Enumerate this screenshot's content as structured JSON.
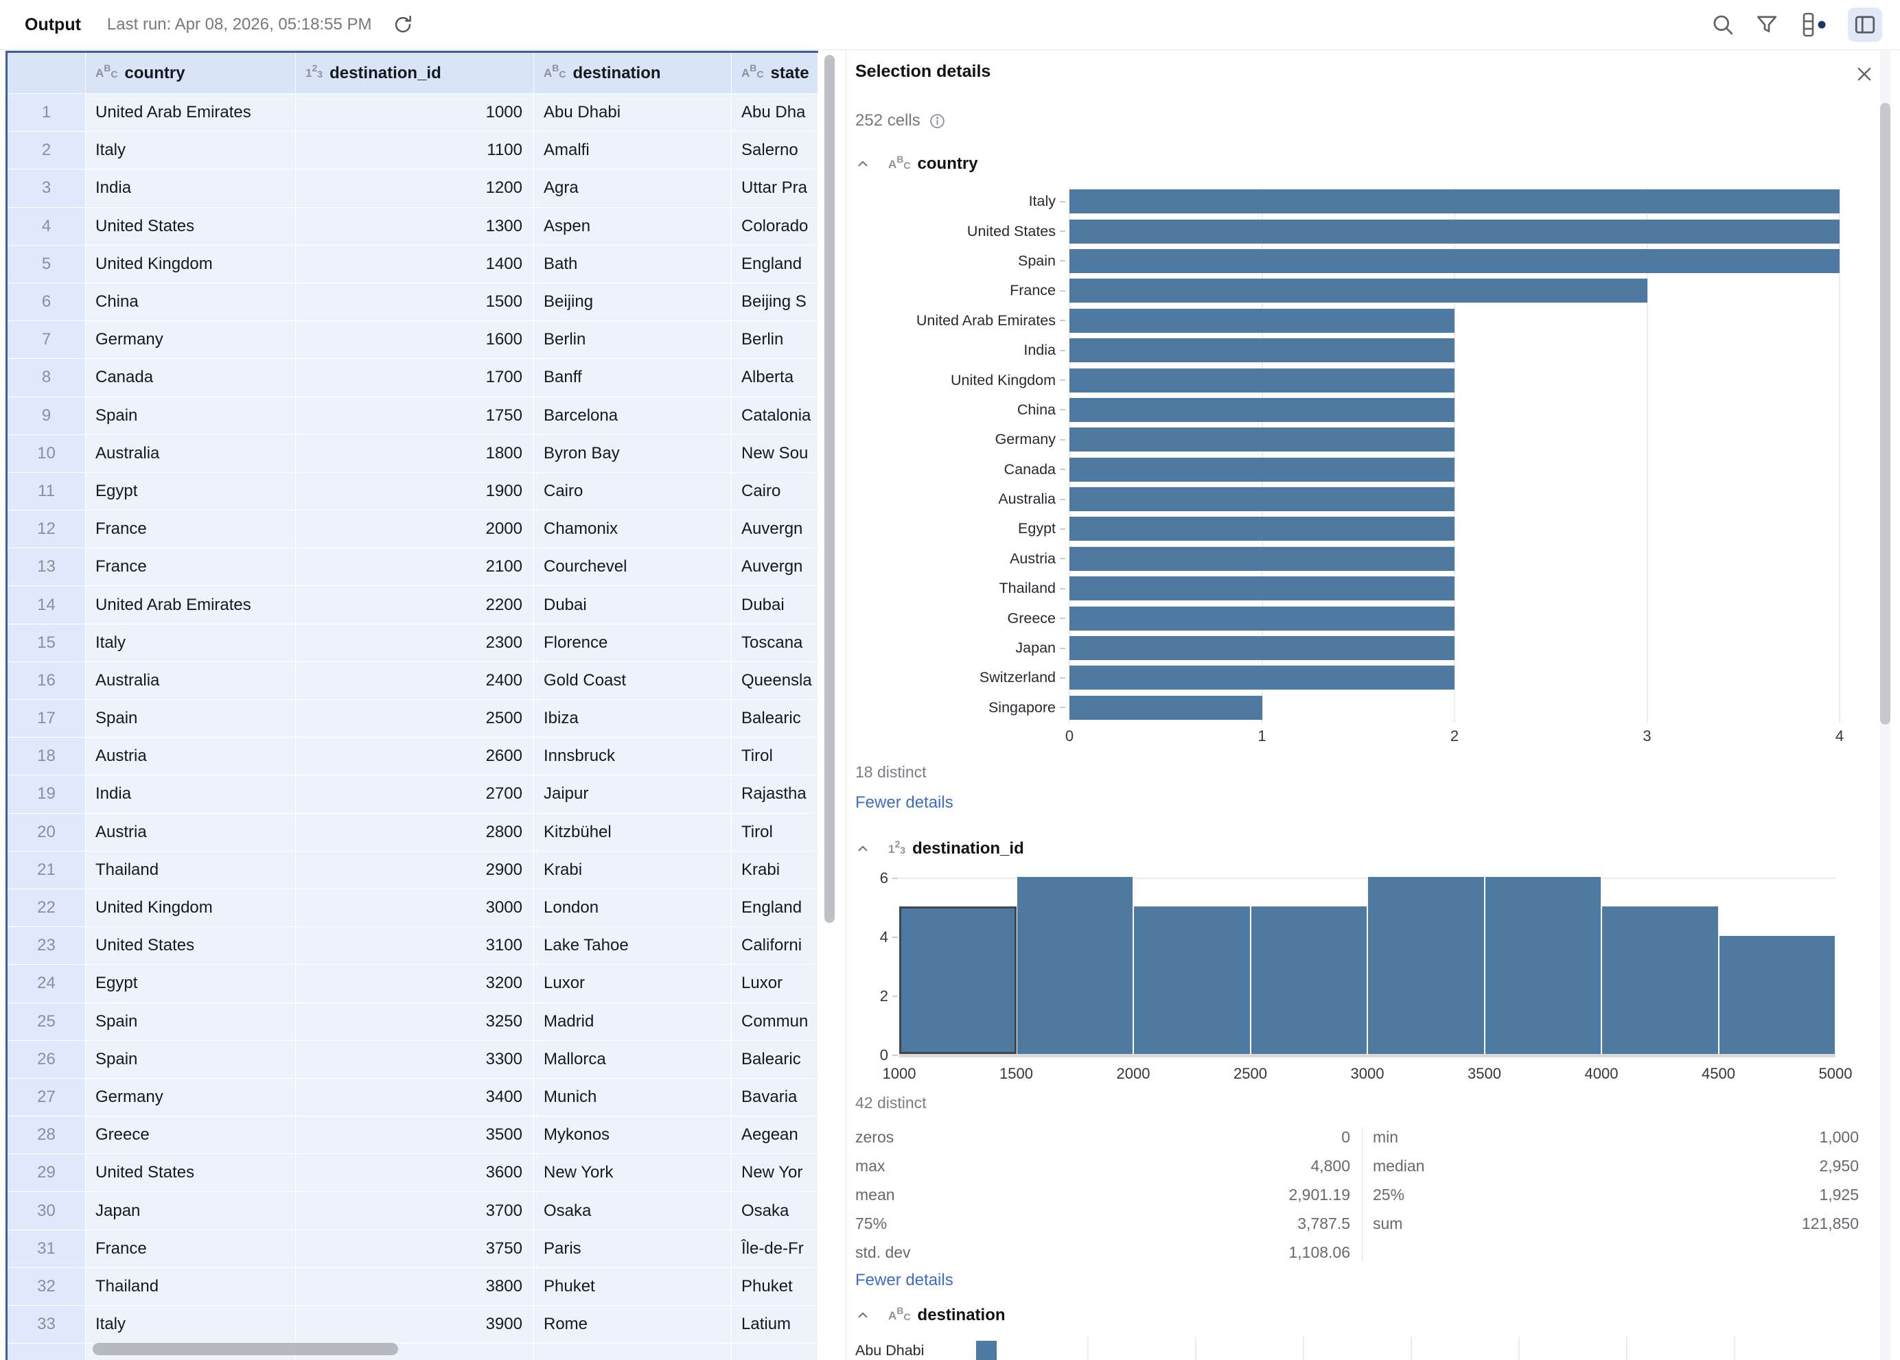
{
  "topbar": {
    "title": "Output",
    "last_run": "Last run: Apr 08, 2026, 05:18:55 PM"
  },
  "panel": {
    "title": "Selection details",
    "cells_summary": "252 cells",
    "fewer_details": "Fewer details"
  },
  "table": {
    "columns": [
      {
        "label": "country",
        "type": "text"
      },
      {
        "label": "destination_id",
        "type": "number"
      },
      {
        "label": "destination",
        "type": "text"
      },
      {
        "label": "state",
        "type": "text"
      }
    ],
    "rows": [
      {
        "n": "1",
        "country": "United Arab Emirates",
        "destination_id": "1000",
        "destination": "Abu Dhabi",
        "state": "Abu Dha"
      },
      {
        "n": "2",
        "country": "Italy",
        "destination_id": "1100",
        "destination": "Amalfi",
        "state": "Salerno"
      },
      {
        "n": "3",
        "country": "India",
        "destination_id": "1200",
        "destination": "Agra",
        "state": "Uttar Pra"
      },
      {
        "n": "4",
        "country": "United States",
        "destination_id": "1300",
        "destination": "Aspen",
        "state": "Colorado"
      },
      {
        "n": "5",
        "country": "United Kingdom",
        "destination_id": "1400",
        "destination": "Bath",
        "state": "England"
      },
      {
        "n": "6",
        "country": "China",
        "destination_id": "1500",
        "destination": "Beijing",
        "state": "Beijing S"
      },
      {
        "n": "7",
        "country": "Germany",
        "destination_id": "1600",
        "destination": "Berlin",
        "state": "Berlin"
      },
      {
        "n": "8",
        "country": "Canada",
        "destination_id": "1700",
        "destination": "Banff",
        "state": "Alberta"
      },
      {
        "n": "9",
        "country": "Spain",
        "destination_id": "1750",
        "destination": "Barcelona",
        "state": "Catalonia"
      },
      {
        "n": "10",
        "country": "Australia",
        "destination_id": "1800",
        "destination": "Byron Bay",
        "state": "New Sou"
      },
      {
        "n": "11",
        "country": "Egypt",
        "destination_id": "1900",
        "destination": "Cairo",
        "state": "Cairo"
      },
      {
        "n": "12",
        "country": "France",
        "destination_id": "2000",
        "destination": "Chamonix",
        "state": "Auvergn"
      },
      {
        "n": "13",
        "country": "France",
        "destination_id": "2100",
        "destination": "Courchevel",
        "state": "Auvergn"
      },
      {
        "n": "14",
        "country": "United Arab Emirates",
        "destination_id": "2200",
        "destination": "Dubai",
        "state": "Dubai"
      },
      {
        "n": "15",
        "country": "Italy",
        "destination_id": "2300",
        "destination": "Florence",
        "state": "Toscana"
      },
      {
        "n": "16",
        "country": "Australia",
        "destination_id": "2400",
        "destination": "Gold Coast",
        "state": "Queensla"
      },
      {
        "n": "17",
        "country": "Spain",
        "destination_id": "2500",
        "destination": "Ibiza",
        "state": "Balearic"
      },
      {
        "n": "18",
        "country": "Austria",
        "destination_id": "2600",
        "destination": "Innsbruck",
        "state": "Tirol"
      },
      {
        "n": "19",
        "country": "India",
        "destination_id": "2700",
        "destination": "Jaipur",
        "state": "Rajastha"
      },
      {
        "n": "20",
        "country": "Austria",
        "destination_id": "2800",
        "destination": "Kitzbühel",
        "state": "Tirol"
      },
      {
        "n": "21",
        "country": "Thailand",
        "destination_id": "2900",
        "destination": "Krabi",
        "state": "Krabi"
      },
      {
        "n": "22",
        "country": "United Kingdom",
        "destination_id": "3000",
        "destination": "London",
        "state": "England"
      },
      {
        "n": "23",
        "country": "United States",
        "destination_id": "3100",
        "destination": "Lake Tahoe",
        "state": "Californi"
      },
      {
        "n": "24",
        "country": "Egypt",
        "destination_id": "3200",
        "destination": "Luxor",
        "state": "Luxor"
      },
      {
        "n": "25",
        "country": "Spain",
        "destination_id": "3250",
        "destination": "Madrid",
        "state": "Commun"
      },
      {
        "n": "26",
        "country": "Spain",
        "destination_id": "3300",
        "destination": "Mallorca",
        "state": "Balearic"
      },
      {
        "n": "27",
        "country": "Germany",
        "destination_id": "3400",
        "destination": "Munich",
        "state": "Bavaria"
      },
      {
        "n": "28",
        "country": "Greece",
        "destination_id": "3500",
        "destination": "Mykonos",
        "state": "Aegean"
      },
      {
        "n": "29",
        "country": "United States",
        "destination_id": "3600",
        "destination": "New York",
        "state": "New Yor"
      },
      {
        "n": "30",
        "country": "Japan",
        "destination_id": "3700",
        "destination": "Osaka",
        "state": "Osaka"
      },
      {
        "n": "31",
        "country": "France",
        "destination_id": "3750",
        "destination": "Paris",
        "state": "Île-de-Fr"
      },
      {
        "n": "32",
        "country": "Thailand",
        "destination_id": "3800",
        "destination": "Phuket",
        "state": "Phuket"
      },
      {
        "n": "33",
        "country": "Italy",
        "destination_id": "3900",
        "destination": "Rome",
        "state": "Latium"
      }
    ]
  },
  "chart_data": [
    {
      "type": "bar",
      "orientation": "horizontal",
      "title": "country",
      "categories": [
        "Italy",
        "United States",
        "Spain",
        "France",
        "United Arab Emirates",
        "India",
        "United Kingdom",
        "China",
        "Germany",
        "Canada",
        "Australia",
        "Egypt",
        "Austria",
        "Thailand",
        "Greece",
        "Japan",
        "Switzerland",
        "Singapore"
      ],
      "values": [
        4,
        4,
        4,
        3,
        2,
        2,
        2,
        2,
        2,
        2,
        2,
        2,
        2,
        2,
        2,
        2,
        2,
        1
      ],
      "xlim": [
        0,
        4
      ],
      "xticks": [
        0,
        1,
        2,
        3,
        4
      ],
      "grid": true,
      "distinct": "18 distinct",
      "bar_color": "#4e7aa1"
    },
    {
      "type": "histogram",
      "title": "destination_id",
      "bin_edges": [
        1000,
        1500,
        2000,
        2500,
        3000,
        3500,
        4000,
        4500,
        5000
      ],
      "counts": [
        5,
        6,
        5,
        5,
        6,
        6,
        5,
        4
      ],
      "ylim": [
        0,
        6
      ],
      "yticks": [
        0,
        2,
        4,
        6
      ],
      "highlighted_bin": 0,
      "grid": true,
      "distinct": "42 distinct",
      "bar_color": "#4e7aa1",
      "stats_left": [
        {
          "label": "zeros",
          "value": "0"
        },
        {
          "label": "max",
          "value": "4,800"
        },
        {
          "label": "mean",
          "value": "2,901.19"
        },
        {
          "label": "75%",
          "value": "3,787.5"
        },
        {
          "label": "std. dev",
          "value": "1,108.06"
        }
      ],
      "stats_right": [
        {
          "label": "min",
          "value": "1,000"
        },
        {
          "label": "median",
          "value": "2,950"
        },
        {
          "label": "25%",
          "value": "1,925"
        },
        {
          "label": "sum",
          "value": "121,850"
        }
      ]
    },
    {
      "type": "bar",
      "orientation": "horizontal",
      "title": "destination",
      "categories": [
        "Abu Dhabi"
      ],
      "values": [
        1
      ],
      "note": "partially visible, cut off at bottom of panel",
      "bar_color": "#4e7aa1"
    }
  ]
}
